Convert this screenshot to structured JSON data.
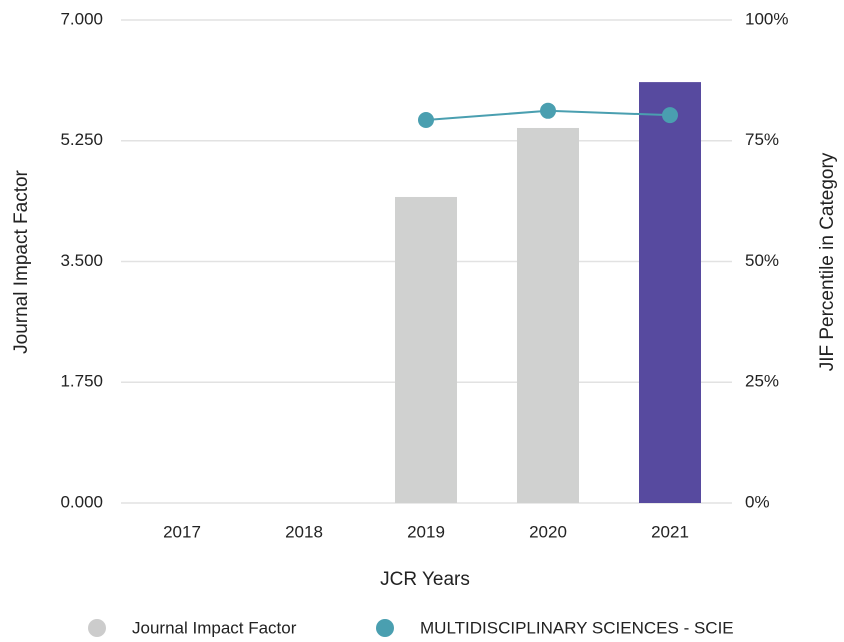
{
  "chart_data": {
    "type": "bar",
    "x_label": "JCR Years",
    "y_label": "Journal Impact Factor",
    "y2_label": "JIF Percentile in Category",
    "categories": [
      "2017",
      "2018",
      "2019",
      "2020",
      "2021"
    ],
    "series": [
      {
        "name": "Journal Impact Factor",
        "type": "bar",
        "color": "#cccccc",
        "colors": [
          "#d0d1d0",
          "#d0d1d0",
          "#d0d1d0",
          "#d0d1d0",
          "#574a9f"
        ],
        "values": [
          null,
          null,
          4.435,
          5.435,
          6.1
        ]
      },
      {
        "name": "MULTIDISCIPLINARY SCIENCES - SCIE",
        "type": "line",
        "color": "#4a9fb0",
        "axis": "y2",
        "values": [
          null,
          null,
          79.3,
          81.2,
          80.3
        ]
      }
    ],
    "ylim": [
      0,
      7
    ],
    "yticks": [
      {
        "value": 0,
        "label": "0.000"
      },
      {
        "value": 1.75,
        "label": "1.750"
      },
      {
        "value": 3.5,
        "label": "3.500"
      },
      {
        "value": 5.25,
        "label": "5.250"
      },
      {
        "value": 7,
        "label": "7.000"
      }
    ],
    "y2lim": [
      0,
      100
    ],
    "y2ticks": [
      {
        "value": 0,
        "label": "0%"
      },
      {
        "value": 25,
        "label": "25%"
      },
      {
        "value": 50,
        "label": "50%"
      },
      {
        "value": 75,
        "label": "75%"
      },
      {
        "value": 100,
        "label": "100%"
      }
    ],
    "grid": true,
    "legend": "bottom"
  }
}
